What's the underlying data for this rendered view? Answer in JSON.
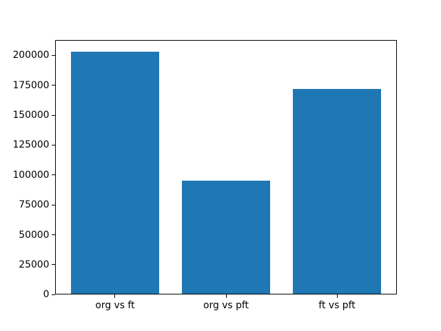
{
  "chart_data": {
    "type": "bar",
    "categories": [
      "org vs ft",
      "org vs pft",
      "ft vs pft"
    ],
    "values": [
      203000,
      95000,
      172000
    ],
    "title": "",
    "xlabel": "",
    "ylabel": "",
    "ylim": [
      0,
      213150
    ],
    "xlim": [
      -0.54,
      2.54
    ],
    "yticks": [
      0,
      25000,
      50000,
      75000,
      100000,
      125000,
      150000,
      175000,
      200000
    ],
    "ytick_labels": [
      "0",
      "25000",
      "50000",
      "75000",
      "100000",
      "125000",
      "150000",
      "175000",
      "200000"
    ],
    "bar_width": 0.8,
    "bar_color": "#1f77b4",
    "spine_color": "#000000",
    "text_color": "#000000",
    "background": "#ffffff",
    "grid": false,
    "legend": "none"
  }
}
